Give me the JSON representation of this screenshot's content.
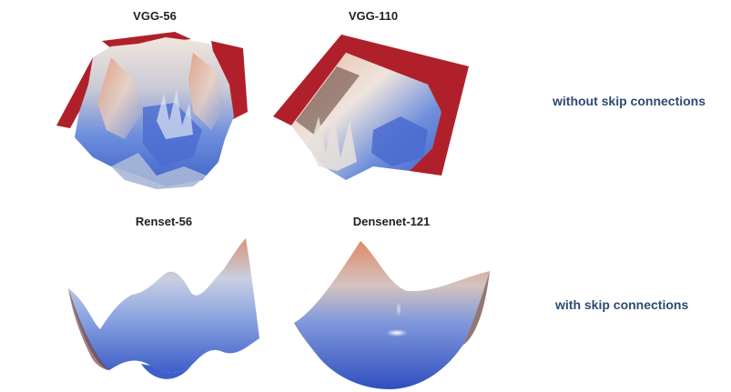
{
  "panels": [
    {
      "title": "VGG-56"
    },
    {
      "title": "VGG-110"
    },
    {
      "title": "Renset-56"
    },
    {
      "title": "Densenet-121"
    }
  ],
  "row_labels": {
    "top": "without skip connections",
    "bottom": "with skip connections"
  },
  "colors": {
    "edge_red": "#b0202a",
    "surface_blue": "#4f72d4",
    "surface_light": "#dfe6f2",
    "surface_orange": "#e08a66",
    "label_blue": "#2f4a73"
  },
  "icons": {}
}
